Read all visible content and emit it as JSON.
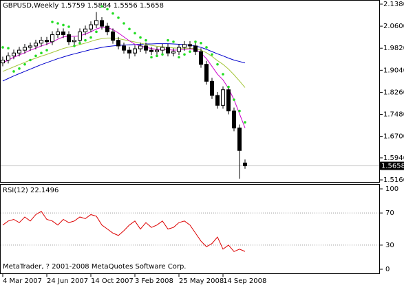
{
  "chart_data": [
    {
      "type": "candlestick",
      "title": "GBPUSD,Weekly  1.5759 1.5884 1.5556 1.5658",
      "ylim": [
        1.5087,
        2.1526
      ],
      "yticks": [
        {
          "value": 2.138,
          "label": "2.1380"
        },
        {
          "value": 2.06,
          "label": "2.0600"
        },
        {
          "value": 1.982,
          "label": "1.9820"
        },
        {
          "value": 1.904,
          "label": "1.9040"
        },
        {
          "value": 1.826,
          "label": "1.8260"
        },
        {
          "value": 1.748,
          "label": "1.7480"
        },
        {
          "value": 1.67,
          "label": "1.6700"
        },
        {
          "value": 1.594,
          "label": "1.5940"
        },
        {
          "value": 1.516,
          "label": "1.5160"
        }
      ],
      "xticks": [
        {
          "value": 0,
          "label": "4 Mar 2007"
        },
        {
          "value": 8,
          "label": "24 Jun 2007"
        },
        {
          "value": 16,
          "label": "14 Oct 2007"
        },
        {
          "value": 24,
          "label": "3 Feb 2008"
        },
        {
          "value": 32,
          "label": "25 May 2008"
        },
        {
          "value": 40,
          "label": "14 Sep 2008"
        }
      ],
      "last_price": {
        "value": 1.5658,
        "label": "1.5658"
      },
      "candles": [
        {
          "o": 1.93,
          "h": 1.952,
          "l": 1.918,
          "c": 1.94
        },
        {
          "o": 1.94,
          "h": 1.967,
          "l": 1.928,
          "c": 1.955
        },
        {
          "o": 1.955,
          "h": 1.977,
          "l": 1.943,
          "c": 1.965
        },
        {
          "o": 1.965,
          "h": 1.987,
          "l": 1.953,
          "c": 1.975
        },
        {
          "o": 1.975,
          "h": 1.997,
          "l": 1.963,
          "c": 1.985
        },
        {
          "o": 1.985,
          "h": 2.002,
          "l": 1.973,
          "c": 1.99
        },
        {
          "o": 1.99,
          "h": 2.012,
          "l": 1.978,
          "c": 2.0
        },
        {
          "o": 2.0,
          "h": 2.022,
          "l": 1.988,
          "c": 2.01
        },
        {
          "o": 2.01,
          "h": 2.022,
          "l": 1.993,
          "c": 2.005
        },
        {
          "o": 2.005,
          "h": 2.042,
          "l": 1.993,
          "c": 2.03
        },
        {
          "o": 2.03,
          "h": 2.052,
          "l": 2.018,
          "c": 2.04
        },
        {
          "o": 2.04,
          "h": 2.052,
          "l": 2.018,
          "c": 2.03
        },
        {
          "o": 2.03,
          "h": 2.042,
          "l": 1.993,
          "c": 2.005
        },
        {
          "o": 2.005,
          "h": 2.022,
          "l": 1.993,
          "c": 2.01
        },
        {
          "o": 2.01,
          "h": 2.052,
          "l": 1.998,
          "c": 2.04
        },
        {
          "o": 2.04,
          "h": 2.062,
          "l": 2.028,
          "c": 2.05
        },
        {
          "o": 2.05,
          "h": 2.077,
          "l": 2.038,
          "c": 2.065
        },
        {
          "o": 2.065,
          "h": 2.11,
          "l": 2.053,
          "c": 2.08
        },
        {
          "o": 2.08,
          "h": 2.092,
          "l": 2.048,
          "c": 2.06
        },
        {
          "o": 2.06,
          "h": 2.072,
          "l": 2.028,
          "c": 2.04
        },
        {
          "o": 2.04,
          "h": 2.052,
          "l": 1.998,
          "c": 2.01
        },
        {
          "o": 2.01,
          "h": 2.022,
          "l": 1.978,
          "c": 1.99
        },
        {
          "o": 1.99,
          "h": 2.002,
          "l": 1.963,
          "c": 1.975
        },
        {
          "o": 1.975,
          "h": 1.987,
          "l": 1.945,
          "c": 1.965
        },
        {
          "o": 1.965,
          "h": 1.992,
          "l": 1.953,
          "c": 1.98
        },
        {
          "o": 1.98,
          "h": 2.002,
          "l": 1.968,
          "c": 1.99
        },
        {
          "o": 1.99,
          "h": 2.002,
          "l": 1.963,
          "c": 1.975
        },
        {
          "o": 1.975,
          "h": 1.987,
          "l": 1.958,
          "c": 1.97
        },
        {
          "o": 1.97,
          "h": 1.987,
          "l": 1.958,
          "c": 1.975
        },
        {
          "o": 1.975,
          "h": 1.997,
          "l": 1.963,
          "c": 1.985
        },
        {
          "o": 1.985,
          "h": 1.997,
          "l": 1.953,
          "c": 1.965
        },
        {
          "o": 1.965,
          "h": 1.982,
          "l": 1.953,
          "c": 1.97
        },
        {
          "o": 1.97,
          "h": 1.997,
          "l": 1.958,
          "c": 1.985
        },
        {
          "o": 1.985,
          "h": 2.007,
          "l": 1.973,
          "c": 1.995
        },
        {
          "o": 1.995,
          "h": 2.007,
          "l": 1.978,
          "c": 1.99
        },
        {
          "o": 1.99,
          "h": 2.002,
          "l": 1.958,
          "c": 1.97
        },
        {
          "o": 1.97,
          "h": 1.982,
          "l": 1.913,
          "c": 1.925
        },
        {
          "o": 1.925,
          "h": 1.937,
          "l": 1.853,
          "c": 1.865
        },
        {
          "o": 1.865,
          "h": 1.877,
          "l": 1.803,
          "c": 1.815
        },
        {
          "o": 1.815,
          "h": 1.827,
          "l": 1.768,
          "c": 1.78
        },
        {
          "o": 1.78,
          "h": 1.847,
          "l": 1.768,
          "c": 1.835
        },
        {
          "o": 1.835,
          "h": 1.847,
          "l": 1.748,
          "c": 1.76
        },
        {
          "o": 1.76,
          "h": 1.772,
          "l": 1.688,
          "c": 1.7
        },
        {
          "o": 1.7,
          "h": 1.712,
          "l": 1.52,
          "c": 1.62
        },
        {
          "o": 1.5759,
          "h": 1.5884,
          "l": 1.5556,
          "c": 1.5658
        }
      ],
      "series": [
        {
          "color": "#0000cc",
          "values": [
            1.866,
            1.875,
            1.884,
            1.892,
            1.9,
            1.908,
            1.916,
            1.924,
            1.931,
            1.938,
            1.945,
            1.951,
            1.957,
            1.962,
            1.967,
            1.972,
            1.977,
            1.981,
            1.985,
            1.988,
            1.99,
            1.992,
            1.993,
            1.994,
            1.995,
            1.996,
            1.997,
            1.997,
            1.998,
            1.998,
            1.998,
            1.997,
            1.996,
            1.995,
            1.993,
            1.99,
            1.985,
            1.978,
            1.97,
            1.962,
            1.955,
            1.947,
            1.94,
            1.935,
            1.93
          ]
        },
        {
          "color": "#a4c639",
          "values": [
            1.9,
            1.908,
            1.916,
            1.924,
            1.932,
            1.94,
            1.947,
            1.954,
            1.96,
            1.967,
            1.974,
            1.981,
            1.986,
            1.99,
            1.995,
            2.0,
            2.006,
            2.012,
            2.016,
            2.018,
            2.018,
            2.016,
            2.012,
            2.008,
            2.004,
            2.0,
            1.996,
            1.992,
            1.989,
            1.987,
            1.985,
            1.983,
            1.982,
            1.982,
            1.982,
            1.98,
            1.975,
            1.966,
            1.953,
            1.938,
            1.925,
            1.908,
            1.888,
            1.866,
            1.843
          ]
        },
        {
          "color": "#cc00cc",
          "values": [
            1.93,
            1.94,
            1.95,
            1.958,
            1.966,
            1.975,
            1.982,
            1.99,
            1.996,
            2.004,
            2.014,
            2.022,
            2.024,
            2.024,
            2.026,
            2.032,
            2.04,
            2.05,
            2.056,
            2.055,
            2.048,
            2.036,
            2.022,
            2.008,
            1.996,
            1.99,
            1.985,
            1.981,
            1.978,
            1.978,
            1.977,
            1.975,
            1.976,
            1.978,
            1.98,
            1.978,
            1.965,
            1.945,
            1.918,
            1.89,
            1.87,
            1.84,
            1.8,
            1.75,
            1.7
          ]
        }
      ],
      "sar": {
        "color": "#22dd22",
        "values": [
          1.985,
          1.982,
          1.9,
          1.91,
          1.925,
          1.94,
          1.955,
          1.965,
          1.975,
          2.075,
          2.07,
          2.064,
          2.058,
          1.99,
          2.0,
          2.01,
          2.02,
          2.04,
          2.13,
          2.12,
          2.105,
          2.09,
          2.07,
          2.05,
          2.035,
          2.02,
          2.01,
          1.95,
          1.955,
          1.96,
          2.01,
          2.005,
          1.95,
          1.96,
          1.97,
          2.005,
          2.0,
          1.985,
          1.96,
          1.925,
          1.89,
          1.845,
          1.8,
          1.76,
          1.72
        ]
      },
      "note": "MetaTrader, ? 2001-2008 MetaQuotes Software Corp."
    },
    {
      "type": "line",
      "title": "RSI(12) 22.1496",
      "ylim": [
        -5.1,
        106
      ],
      "yticks": [
        100,
        70,
        30,
        0
      ],
      "grid_values": [
        70,
        30
      ],
      "color": "#dd0000",
      "values": [
        55,
        60,
        62,
        58,
        65,
        60,
        68,
        72,
        62,
        60,
        55,
        62,
        58,
        60,
        65,
        63,
        68,
        66,
        55,
        50,
        45,
        42,
        48,
        55,
        60,
        50,
        58,
        52,
        55,
        60,
        50,
        52,
        58,
        60,
        55,
        45,
        35,
        28,
        32,
        40,
        25,
        30,
        22,
        25,
        22.1496
      ]
    }
  ]
}
